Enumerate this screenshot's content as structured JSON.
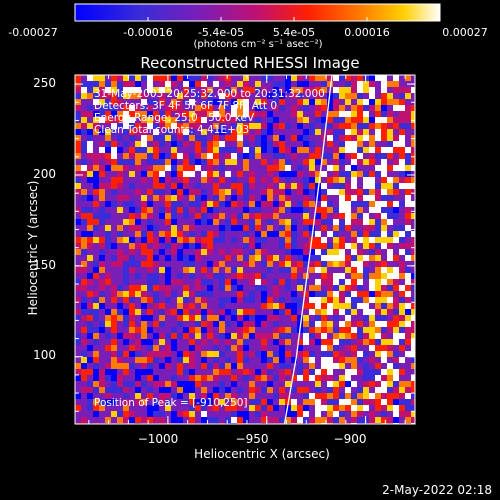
{
  "colorbar": {
    "tick_labels": [
      "-0.00027",
      "-0.00016",
      "-5.4e-05",
      "5.4e-05",
      "0.00016",
      "0.00027"
    ],
    "units": "(photons cm⁻² s⁻¹ asec⁻²)",
    "range": [
      -0.00027,
      0.00027
    ],
    "colors": [
      "#0000ff",
      "#3a2cd8",
      "#7a1eb8",
      "#c01070",
      "#ff2000",
      "#ff7a00",
      "#ffd000",
      "#ffffff"
    ]
  },
  "chart_data": {
    "type": "heatmap",
    "title": "Reconstructed RHESSI Image",
    "xlabel": "Heliocentric X (arcsec)",
    "ylabel": "Heliocentric Y (arcsec)",
    "xlim": [
      -1047,
      -875
    ],
    "ylim": [
      63,
      255
    ],
    "x_ticks": [
      -1000,
      -950,
      -900
    ],
    "x_tick_labels": [
      "−1000",
      "−950",
      "−900"
    ],
    "y_ticks": [
      100,
      150,
      200,
      250
    ],
    "y_tick_labels": [
      "100",
      "150",
      "200",
      "250"
    ],
    "annotations": [
      "31-May-2003 20:25:32.000 to 20:31:32.000",
      "Detectors: 3F 4F 5F 6F 7F 8F, Att 0",
      "Energy Range: 25.0 - 50.0 keV",
      "Clean     Total counts: 4.41E+03"
    ],
    "peak_text": "Position of Peak = [-910,250]",
    "limb_curve": [
      [
        -941,
        63
      ],
      [
        -935,
        100
      ],
      [
        -929,
        150
      ],
      [
        -923,
        200
      ],
      [
        -917,
        255
      ]
    ],
    "colors": {
      "limb": "#ffffff",
      "axes": "#ffffff",
      "background": "#000000"
    }
  },
  "timestamp": "2-May-2022 02:18"
}
